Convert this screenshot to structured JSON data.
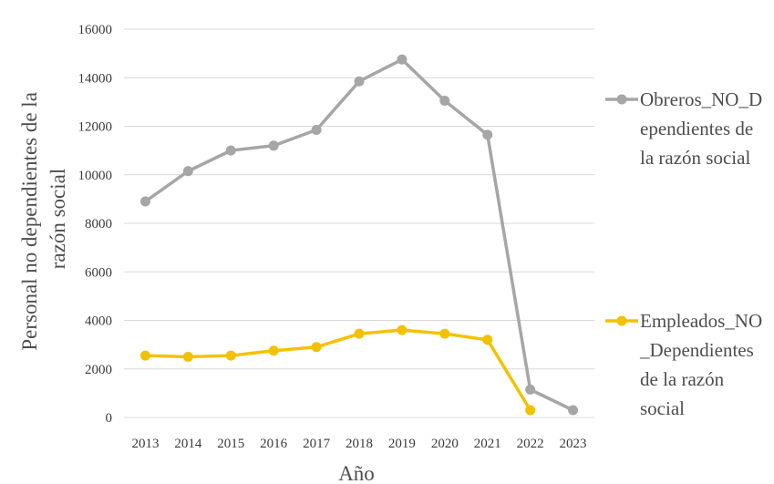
{
  "chart_data": {
    "type": "line",
    "title": "",
    "xlabel": "Año",
    "ylabel_lines": [
      "Personal no dependientes de la",
      "razón social"
    ],
    "x": [
      "2013",
      "2014",
      "2015",
      "2016",
      "2017",
      "2018",
      "2019",
      "2020",
      "2021",
      "2022",
      "2023"
    ],
    "ylim": [
      0,
      16000
    ],
    "yticks": [
      "0",
      "2000",
      "4000",
      "6000",
      "8000",
      "10000",
      "12000",
      "14000",
      "16000"
    ],
    "grid": true,
    "legend_position": "right",
    "series": [
      {
        "name": "Obreros_NO_Dependientes de la razón social",
        "legend_lines": [
          "Obreros_NO_D",
          "ependientes de",
          "la razón social"
        ],
        "color": "#a6a6a6",
        "values": [
          8900,
          10150,
          11000,
          11200,
          11850,
          13850,
          14750,
          13050,
          11650,
          1150,
          300
        ]
      },
      {
        "name": "Empleados_NO_Dependientes de la razón social",
        "legend_lines": [
          "Empleados_NO",
          "_Dependientes",
          "de la razón",
          "social"
        ],
        "color": "#f2c200",
        "values": [
          2550,
          2500,
          2550,
          2750,
          2900,
          3450,
          3600,
          3450,
          3200,
          300,
          null
        ]
      }
    ]
  }
}
